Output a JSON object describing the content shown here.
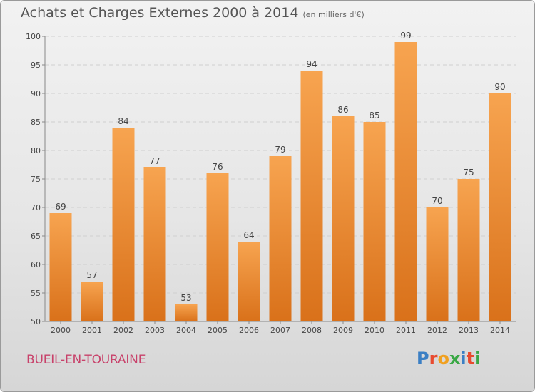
{
  "header": {
    "title": "Achats et Charges Externes 2000 à 2014",
    "subtitle": "(en milliers d'€)"
  },
  "footer": {
    "commune": "BUEIL-EN-TOURAINE"
  },
  "logo": {
    "letters": [
      "P",
      "r",
      "o",
      "x",
      "i",
      "t",
      "i"
    ],
    "colors": [
      "#3b7fc4",
      "#e84a2f",
      "#f0a020",
      "#3aa845",
      "#3b7fc4",
      "#e84a2f",
      "#3aa845"
    ]
  },
  "colors": {
    "bar_top": "#f7a450",
    "bar_bottom": "#d9711a",
    "commune": "#c8416a"
  },
  "chart_data": {
    "type": "bar",
    "categories": [
      "2000",
      "2001",
      "2002",
      "2003",
      "2004",
      "2005",
      "2006",
      "2007",
      "2008",
      "2009",
      "2010",
      "2011",
      "2012",
      "2013",
      "2014"
    ],
    "values": [
      69,
      57,
      84,
      77,
      53,
      76,
      64,
      79,
      94,
      86,
      85,
      99,
      70,
      75,
      90
    ],
    "ylim": [
      50,
      100
    ],
    "yticks": [
      50,
      55,
      60,
      65,
      70,
      75,
      80,
      85,
      90,
      95,
      100
    ],
    "grid": true,
    "data_labels": true
  }
}
